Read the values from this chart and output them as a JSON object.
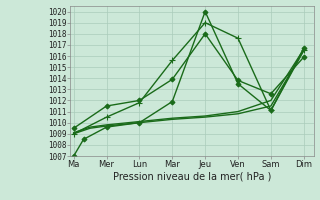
{
  "xlabel": "Pression niveau de la mer( hPa )",
  "background_color": "#cce8d8",
  "grid_color": "#aaccbb",
  "line_color": "#1a6b1a",
  "ylim": [
    1007,
    1020.5
  ],
  "ytick_min": 1007,
  "ytick_max": 1020,
  "x_labels": [
    "Ma",
    "Mer",
    "Lun",
    "Mar",
    "Jeu",
    "Ven",
    "Sam",
    "Dim"
  ],
  "x_positions": [
    0,
    1,
    2,
    3,
    4,
    5,
    6,
    7
  ],
  "lines": [
    {
      "x": [
        0,
        0.5,
        1,
        2,
        3,
        4,
        5,
        6,
        7
      ],
      "y": [
        1009.0,
        1009.5,
        1009.7,
        1010.0,
        1010.3,
        1010.5,
        1010.8,
        1011.5,
        1016.5
      ],
      "marker": null,
      "markersize": 0,
      "lw": 1.0
    },
    {
      "x": [
        0,
        0.5,
        1,
        2,
        3,
        4,
        5,
        6,
        7
      ],
      "y": [
        1009.1,
        1009.6,
        1009.8,
        1010.1,
        1010.4,
        1010.6,
        1011.0,
        1012.0,
        1016.6
      ],
      "marker": null,
      "markersize": 0,
      "lw": 1.0
    },
    {
      "x": [
        0,
        1,
        2,
        3,
        4,
        5,
        6,
        7
      ],
      "y": [
        1009.5,
        1011.5,
        1012.0,
        1013.9,
        1018.0,
        1013.8,
        1012.6,
        1015.9
      ],
      "marker": "D",
      "markersize": 2.5,
      "lw": 1.0
    },
    {
      "x": [
        0,
        1,
        2,
        3,
        4,
        5,
        6,
        7
      ],
      "y": [
        1009.0,
        1010.5,
        1011.8,
        1015.6,
        1019.0,
        1017.6,
        1011.1,
        1016.5
      ],
      "marker": "+",
      "markersize": 4,
      "lw": 1.0
    },
    {
      "x": [
        0,
        0.3,
        1,
        2,
        3,
        4,
        5,
        6,
        7
      ],
      "y": [
        1007.0,
        1008.5,
        1009.6,
        1010.0,
        1011.9,
        1020.0,
        1013.5,
        1011.1,
        1016.7
      ],
      "marker": "D",
      "markersize": 2.5,
      "lw": 1.0
    }
  ]
}
